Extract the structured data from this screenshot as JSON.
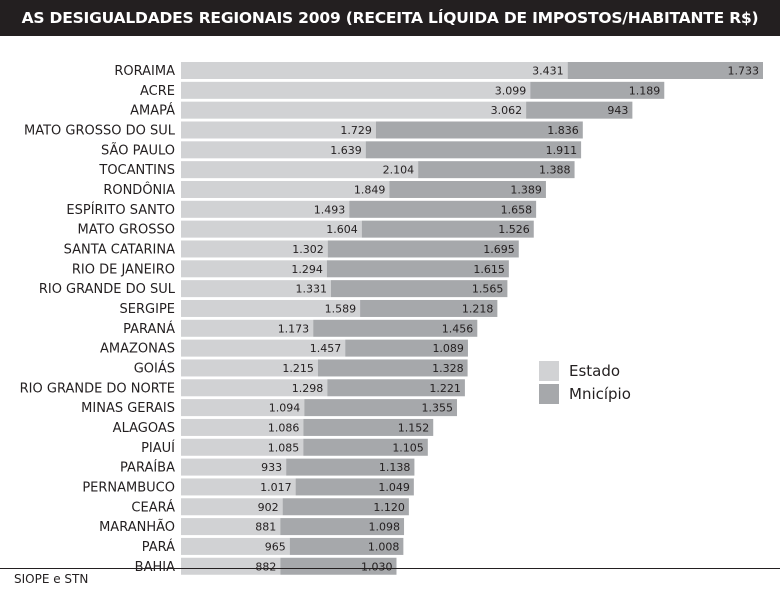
{
  "chart_data": {
    "type": "bar",
    "orientation": "horizontal",
    "stacked": true,
    "title": "AS DESIGUALDADES REGIONAIS 2009 (RECEITA LÍQUIDA DE IMPOSTOS/HABITANTE R$)",
    "categories": [
      "RORAIMA",
      "ACRE",
      "AMAPÁ",
      "MATO GROSSO DO SUL",
      "SÃO PAULO",
      "TOCANTINS",
      "RONDÔNIA",
      "ESPÍRITO SANTO",
      "MATO GROSSO",
      "SANTA CATARINA",
      "RIO DE JANEIRO",
      "RIO GRANDE DO SUL",
      "SERGIPE",
      "PARANÁ",
      "AMAZONAS",
      "GOIÁS",
      "RIO GRANDE DO NORTE",
      "MINAS GERAIS",
      "ALAGOAS",
      "PIAUÍ",
      "PARAÍBA",
      "PERNAMBUCO",
      "CEARÁ",
      "MARANHÃO",
      "PARÁ",
      "BAHIA"
    ],
    "series": [
      {
        "name": "Estado",
        "color": "#d1d2d4",
        "values": [
          3431,
          3099,
          3062,
          1729,
          1639,
          2104,
          1849,
          1493,
          1604,
          1302,
          1294,
          1331,
          1589,
          1173,
          1457,
          1215,
          1298,
          1094,
          1086,
          1085,
          933,
          1017,
          902,
          881,
          965,
          882
        ],
        "labels": [
          "3.431",
          "3.099",
          "3.062",
          "1.729",
          "1.639",
          "2.104",
          "1.849",
          "1.493",
          "1.604",
          "1.302",
          "1.294",
          "1.331",
          "1.589",
          "1.173",
          "1.457",
          "1.215",
          "1.298",
          "1.094",
          "1.086",
          "1.085",
          "933",
          "1.017",
          "902",
          "881",
          "965",
          "882"
        ]
      },
      {
        "name": "Mnicípio",
        "color": "#a6a8ab",
        "values": [
          1733,
          1189,
          943,
          1836,
          1911,
          1388,
          1389,
          1658,
          1526,
          1695,
          1615,
          1565,
          1218,
          1456,
          1089,
          1328,
          1221,
          1355,
          1152,
          1105,
          1138,
          1049,
          1120,
          1098,
          1008,
          1030
        ],
        "labels": [
          "1.733",
          "1.189",
          "943",
          "1.836",
          "1.911",
          "1.388",
          "1.389",
          "1.658",
          "1.526",
          "1.695",
          "1.615",
          "1.565",
          "1.218",
          "1.456",
          "1.089",
          "1.328",
          "1.221",
          "1.355",
          "1.152",
          "1.105",
          "1.138",
          "1.049",
          "1.120",
          "1.098",
          "1.008",
          "1.030"
        ]
      }
    ],
    "legend_position": "right",
    "grid": false
  },
  "source": "SIOPE e STN"
}
